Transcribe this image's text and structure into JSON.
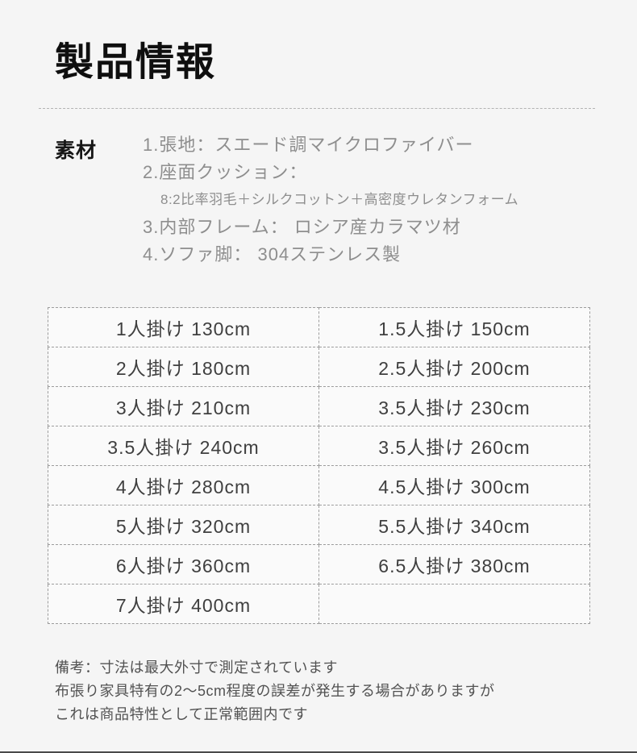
{
  "page": {
    "title": "製品情報"
  },
  "colors": {
    "page_bg": "#f5f5f5",
    "cell_bg": "#fafafa",
    "dashed_border": "#9c9c9c",
    "title_text": "#0f0f0f",
    "materials_text": "#8e8e8e",
    "table_text": "#3f3f3f",
    "notes_text": "#525252"
  },
  "materials": {
    "label": "素材",
    "items": [
      "1.張地：スエード調マイクロファイバー",
      "2.座面クッション：",
      "3.内部フレーム： ロシア産カラマツ材",
      "4.ソファ脚： 304ステンレス製"
    ],
    "cushion_detail": "8:2比率羽毛＋シルクコットン＋高密度ウレタンフォーム"
  },
  "size_table": {
    "rows": [
      {
        "left": "1人掛け 130cm",
        "right": "1.5人掛け 150cm"
      },
      {
        "left": "2人掛け 180cm",
        "right": "2.5人掛け 200cm"
      },
      {
        "left": "3人掛け 210cm",
        "right": "3.5人掛け 230cm"
      },
      {
        "left": "3.5人掛け 240cm",
        "right": "3.5人掛け 260cm"
      },
      {
        "left": "4人掛け 280cm",
        "right": "4.5人掛け 300cm"
      },
      {
        "left": "5人掛け 320cm",
        "right": "5.5人掛け 340cm"
      },
      {
        "left": "6人掛け 360cm",
        "right": "6.5人掛け 380cm"
      },
      {
        "left": "7人掛け 400cm",
        "right": ""
      }
    ]
  },
  "notes": {
    "lines": [
      "備考：寸法は最大外寸で測定されています",
      "布張り家具特有の2～5cm程度の誤差が発生する場合がありますが",
      "これは商品特性として正常範囲内です"
    ]
  }
}
